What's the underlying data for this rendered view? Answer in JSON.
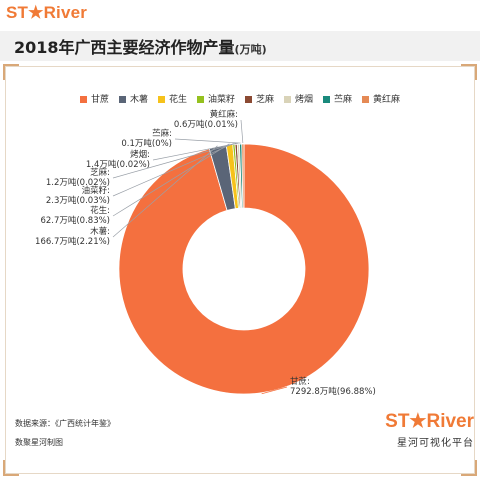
{
  "brand": {
    "logo_text": "ST★River",
    "logo_subtitle": "星河可视化平台"
  },
  "header": {
    "title": "2018年广西主要经济作物产量",
    "unit": "(万吨)"
  },
  "footer": {
    "source": "数据来源：《广西统计年鉴》",
    "maker": "数聚星河制图"
  },
  "chart_data": {
    "type": "pie",
    "style": "donut",
    "unit": "万吨",
    "legend_position": "top",
    "categories": [
      "甘蔗",
      "木薯",
      "花生",
      "油菜籽",
      "芝麻",
      "烤烟",
      "苎麻",
      "黄红麻"
    ],
    "values": [
      7292.8,
      166.7,
      62.7,
      2.3,
      1.2,
      1.4,
      0.1,
      0.6
    ],
    "percents": [
      "96.88%",
      "2.21%",
      "0.83%",
      "0.03%",
      "0.02%",
      "0.02%",
      "0%",
      "0.01%"
    ],
    "colors": [
      "#f4703f",
      "#5a6577",
      "#f6c21b",
      "#95c11f",
      "#8b4a33",
      "#d9d3b8",
      "#1a8a7c",
      "#e58a55"
    ],
    "data_labels": [
      {
        "name": "甘蔗:",
        "value": "7292.8万吨(96.88%)"
      },
      {
        "name": "木薯:",
        "value": "166.7万吨(2.21%)"
      },
      {
        "name": "花生:",
        "value": "62.7万吨(0.83%)"
      },
      {
        "name": "油菜籽:",
        "value": "2.3万吨(0.03%)"
      },
      {
        "name": "芝麻:",
        "value": "1.2万吨(0.02%)"
      },
      {
        "name": "烤烟:",
        "value": "1.4万吨(0.02%)"
      },
      {
        "name": "苎麻:",
        "value": "0.1万吨(0%)"
      },
      {
        "name": "黄红麻:",
        "value": "0.6万吨(0.01%)"
      }
    ]
  }
}
